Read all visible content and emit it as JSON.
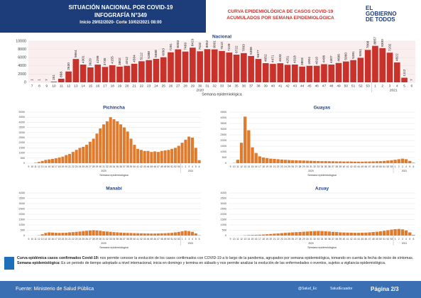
{
  "header": {
    "title": "SITUACIÓN NACIONAL POR  COVID-19",
    "subtitle": "INFOGRAFÍA N°349",
    "period": "Inicio 29/02/2020- Corte 10/02/2021 08:00",
    "chart_heading_1": "CURVA EPIDEMIOLÓGICA DE CASOS COVID-19",
    "chart_heading_2": "ACUMULADOS POR SEMANA EPIDEMIOLÓGICA",
    "logo_1": "EL",
    "logo_2": "GOBIERNO",
    "logo_3": "DE TODOS"
  },
  "chart_data": [
    {
      "type": "bar",
      "title": "Nacional",
      "color": "#c8322b",
      "data_labels": true,
      "grid": true,
      "x_label": "Semana epidemiológica",
      "year_labels": [
        "2020",
        "2021"
      ],
      "categories": [
        "7",
        "8",
        "9",
        "10",
        "11",
        "12",
        "13",
        "14",
        "15",
        "16",
        "17",
        "18",
        "19",
        "20",
        "21",
        "22",
        "23",
        "24",
        "25",
        "26",
        "27",
        "28",
        "29",
        "30",
        "31",
        "32",
        "33",
        "34",
        "35",
        "36",
        "37",
        "38",
        "39",
        "40",
        "41",
        "42",
        "43",
        "44",
        "45",
        "46",
        "47",
        "48",
        "49",
        "50",
        "51",
        "52",
        "53",
        "1",
        "2",
        "3",
        "4",
        "5",
        "6"
      ],
      "values": [
        1,
        1,
        7,
        151,
        868,
        2630,
        5664,
        4301,
        3620,
        4299,
        3735,
        4155,
        3802,
        4012,
        4504,
        5112,
        5388,
        5698,
        6093,
        7291,
        8003,
        7469,
        8419,
        7532,
        8052,
        8001,
        7610,
        7228,
        6722,
        7093,
        6398,
        5677,
        4652,
        4471,
        4633,
        4251,
        4318,
        3803,
        4004,
        4010,
        4406,
        4307,
        4696,
        5060,
        5391,
        5951,
        7868,
        8857,
        8300,
        7202,
        4822,
        1112,
        7
      ],
      "ylim": [
        0,
        10000
      ],
      "yticks": [
        0,
        2000,
        4000,
        6000,
        8000,
        10000
      ]
    },
    {
      "type": "bar",
      "title": "Pichincha",
      "color": "#e07a2c",
      "data_labels": false,
      "grid": true,
      "x_label": "Semana epidemiológica",
      "year_labels": [
        "2020",
        "2021"
      ],
      "categories": [
        "9",
        "10",
        "11",
        "12",
        "13",
        "14",
        "15",
        "16",
        "17",
        "18",
        "19",
        "20",
        "21",
        "22",
        "23",
        "24",
        "25",
        "26",
        "27",
        "28",
        "29",
        "30",
        "31",
        "32",
        "33",
        "34",
        "35",
        "36",
        "37",
        "38",
        "39",
        "40",
        "41",
        "42",
        "43",
        "44",
        "45",
        "46",
        "47",
        "48",
        "49",
        "50",
        "51",
        "52",
        "53",
        "1",
        "2",
        "3",
        "4",
        "5",
        "6"
      ],
      "values": [
        0,
        5,
        40,
        120,
        220,
        320,
        370,
        420,
        480,
        560,
        640,
        800,
        900,
        1100,
        1300,
        1500,
        1600,
        1800,
        2100,
        2400,
        2900,
        3400,
        3800,
        4100,
        4500,
        4300,
        4100,
        3800,
        3500,
        3100,
        2400,
        1800,
        1400,
        1300,
        1200,
        1200,
        1100,
        1150,
        1100,
        1200,
        1250,
        1300,
        1400,
        1500,
        1700,
        2000,
        2300,
        2600,
        2500,
        1500,
        300
      ],
      "ylim": [
        0,
        5000
      ],
      "yticks": [
        0,
        500,
        1000,
        1500,
        2000,
        2500,
        3000,
        3500,
        4000,
        4500,
        5000
      ]
    },
    {
      "type": "bar",
      "title": "Guayas",
      "color": "#e07a2c",
      "data_labels": false,
      "grid": true,
      "x_label": "Semana epidemiológica",
      "year_labels": [
        "2020",
        "2021"
      ],
      "categories": [
        "9",
        "10",
        "11",
        "12",
        "13",
        "14",
        "15",
        "16",
        "17",
        "18",
        "19",
        "20",
        "21",
        "22",
        "23",
        "24",
        "25",
        "26",
        "27",
        "28",
        "29",
        "30",
        "31",
        "32",
        "33",
        "34",
        "35",
        "36",
        "37",
        "38",
        "39",
        "40",
        "41",
        "42",
        "43",
        "44",
        "45",
        "46",
        "47",
        "48",
        "49",
        "50",
        "51",
        "52",
        "53",
        "1",
        "2",
        "3",
        "4",
        "5",
        "6"
      ],
      "values": [
        0,
        20,
        300,
        1800,
        4100,
        2900,
        1400,
        900,
        600,
        500,
        450,
        400,
        380,
        350,
        320,
        300,
        280,
        260,
        250,
        240,
        230,
        220,
        210,
        200,
        190,
        180,
        180,
        170,
        170,
        160,
        160,
        150,
        150,
        150,
        140,
        140,
        140,
        150,
        150,
        160,
        170,
        180,
        200,
        230,
        260,
        300,
        350,
        400,
        350,
        200,
        40
      ],
      "ylim": [
        0,
        4500
      ],
      "yticks": [
        0,
        500,
        1000,
        1500,
        2000,
        2500,
        3000,
        3500,
        4000,
        4500
      ]
    },
    {
      "type": "bar",
      "title": "Manabí",
      "color": "#e07a2c",
      "data_labels": false,
      "grid": true,
      "x_label": "Semana epidemiológica",
      "year_labels": [
        "2020",
        "2021"
      ],
      "categories": [
        "9",
        "10",
        "11",
        "12",
        "13",
        "14",
        "15",
        "16",
        "17",
        "18",
        "19",
        "20",
        "21",
        "22",
        "23",
        "24",
        "25",
        "26",
        "27",
        "28",
        "29",
        "30",
        "31",
        "32",
        "33",
        "34",
        "35",
        "36",
        "37",
        "38",
        "39",
        "40",
        "41",
        "42",
        "43",
        "44",
        "45",
        "46",
        "47",
        "48",
        "49",
        "50",
        "51",
        "52",
        "53",
        "1",
        "2",
        "3",
        "4",
        "5",
        "6"
      ],
      "values": [
        0,
        0,
        5,
        30,
        120,
        250,
        300,
        280,
        260,
        250,
        260,
        270,
        300,
        320,
        350,
        380,
        420,
        450,
        480,
        500,
        480,
        450,
        400,
        380,
        350,
        320,
        300,
        280,
        260,
        250,
        240,
        230,
        220,
        210,
        200,
        200,
        190,
        190,
        200,
        210,
        220,
        240,
        260,
        300,
        350,
        400,
        450,
        420,
        350,
        200,
        30
      ],
      "ylim": [
        0,
        4000
      ],
      "yticks": [
        0,
        500,
        1000,
        1500,
        2000,
        2500,
        3000,
        3500,
        4000
      ]
    },
    {
      "type": "bar",
      "title": "Azuay",
      "color": "#e07a2c",
      "data_labels": false,
      "grid": true,
      "x_label": "Semana epidemiológica",
      "year_labels": [
        "2020",
        "2021"
      ],
      "categories": [
        "9",
        "10",
        "11",
        "12",
        "13",
        "14",
        "15",
        "16",
        "17",
        "18",
        "19",
        "20",
        "21",
        "22",
        "23",
        "24",
        "25",
        "26",
        "27",
        "28",
        "29",
        "30",
        "31",
        "32",
        "33",
        "34",
        "35",
        "36",
        "37",
        "38",
        "39",
        "40",
        "41",
        "42",
        "43",
        "44",
        "45",
        "46",
        "47",
        "48",
        "49",
        "50",
        "51",
        "52",
        "53",
        "1",
        "2",
        "3",
        "4",
        "5",
        "6"
      ],
      "values": [
        0,
        0,
        2,
        10,
        30,
        50,
        60,
        70,
        80,
        100,
        120,
        150,
        180,
        200,
        230,
        260,
        280,
        300,
        320,
        340,
        360,
        380,
        400,
        420,
        430,
        420,
        400,
        380,
        350,
        330,
        300,
        290,
        280,
        270,
        260,
        260,
        270,
        280,
        300,
        330,
        360,
        400,
        450,
        500,
        560,
        600,
        620,
        580,
        480,
        300,
        60
      ],
      "ylim": [
        0,
        4000
      ],
      "yticks": [
        0,
        500,
        1000,
        1500,
        2000,
        2500,
        3000,
        3500,
        4000
      ]
    }
  ],
  "notes": {
    "term_1": "Curva epidémica casos confirmados Covid-19:",
    "text_1": "nos permite conocer la evolución de los casos confirmados con COVID-19 a lo largo de la pandemia, agrupados por semana epidemiológica, tomando en cuenta la fecha de inicio de síntomas.",
    "term_2": "Semana epidemiológica:",
    "text_2": "Es un periodo de tiempo adoptado a nivel internacional, inicia en domingo y termina en sábado y nos permite analizar la evolución de las enfermedades o eventos, sujetos a vigilancia epidemiológica."
  },
  "footer": {
    "source": "Fuente: Ministerio de Salud Pública",
    "twitter": "@Salud_Ec",
    "facebook": "SaludEcuador",
    "page": "Página 2/3"
  }
}
